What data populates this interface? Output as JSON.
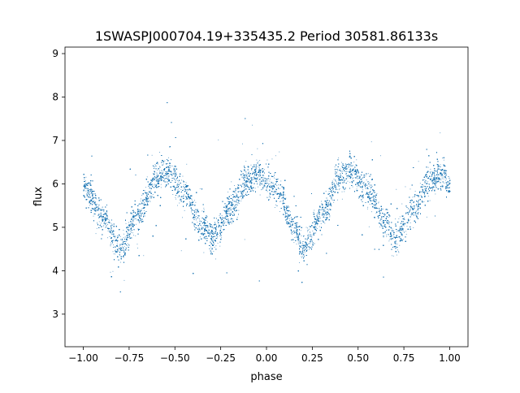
{
  "chart_data": {
    "type": "scatter",
    "title": "1SWASPJ000704.19+335435.2 Period 30581.86133s",
    "xlabel": "phase",
    "ylabel": "flux",
    "xlim": [
      -1.1,
      1.1
    ],
    "ylim": [
      2.25,
      9.15
    ],
    "xticks": [
      "−1.00",
      "−0.75",
      "−0.50",
      "−0.25",
      "0.00",
      "0.25",
      "0.50",
      "0.75",
      "1.00"
    ],
    "xtick_values": [
      -1.0,
      -0.75,
      -0.5,
      -0.25,
      0.0,
      0.25,
      0.5,
      0.75,
      1.0
    ],
    "yticks": [
      "3",
      "4",
      "5",
      "6",
      "7",
      "8",
      "9"
    ],
    "ytick_values": [
      3,
      4,
      5,
      6,
      7,
      8,
      9
    ],
    "grid": false,
    "marker_color": "#1f77b4",
    "series": [
      {
        "curve_x": [
          -1.0,
          -0.9,
          -0.8,
          -0.7,
          -0.6,
          -0.55,
          -0.45,
          -0.35,
          -0.3,
          -0.2,
          -0.1,
          -0.05,
          0.05,
          0.15,
          0.2,
          0.3,
          0.4,
          0.45,
          0.55,
          0.65,
          0.7,
          0.8,
          0.9,
          0.95,
          1.0
        ],
        "curve_y": [
          5.95,
          5.3,
          4.5,
          5.3,
          6.15,
          6.3,
          5.8,
          5.0,
          4.75,
          5.45,
          6.1,
          6.25,
          5.9,
          5.0,
          4.5,
          5.3,
          6.15,
          6.3,
          5.9,
          5.1,
          4.7,
          5.4,
          6.1,
          6.25,
          6.05
        ],
        "approx_points": 30000,
        "scatter_sd": 0.18
      }
    ]
  }
}
